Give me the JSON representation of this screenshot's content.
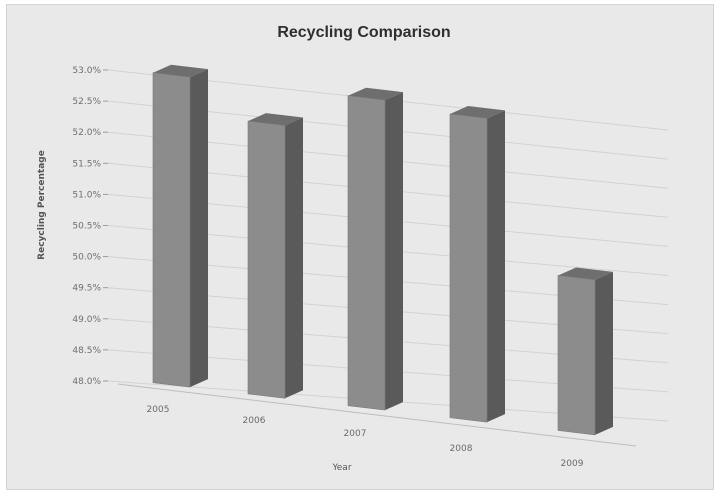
{
  "chart_data": {
    "type": "bar",
    "title": "Recycling Comparison",
    "xlabel": "Year",
    "ylabel": "Recycling Percentage",
    "categories": [
      "2005",
      "2006",
      "2007",
      "2008",
      "2009"
    ],
    "values": [
      53.0,
      52.4,
      53.0,
      52.9,
      50.5
    ],
    "ylim": [
      48.0,
      53.0
    ],
    "yticks": [
      "48.0%",
      "48.5%",
      "49.0%",
      "49.5%",
      "50.0%",
      "50.5%",
      "51.0%",
      "51.5%",
      "52.0%",
      "52.5%",
      "53.0%"
    ],
    "grid": true,
    "legend": "none",
    "colors": {
      "bar_front": "#8c8c8c",
      "bar_side": "#5a5a5a",
      "bar_top": "#6e6e6e",
      "background": "#e9e9e9"
    }
  }
}
